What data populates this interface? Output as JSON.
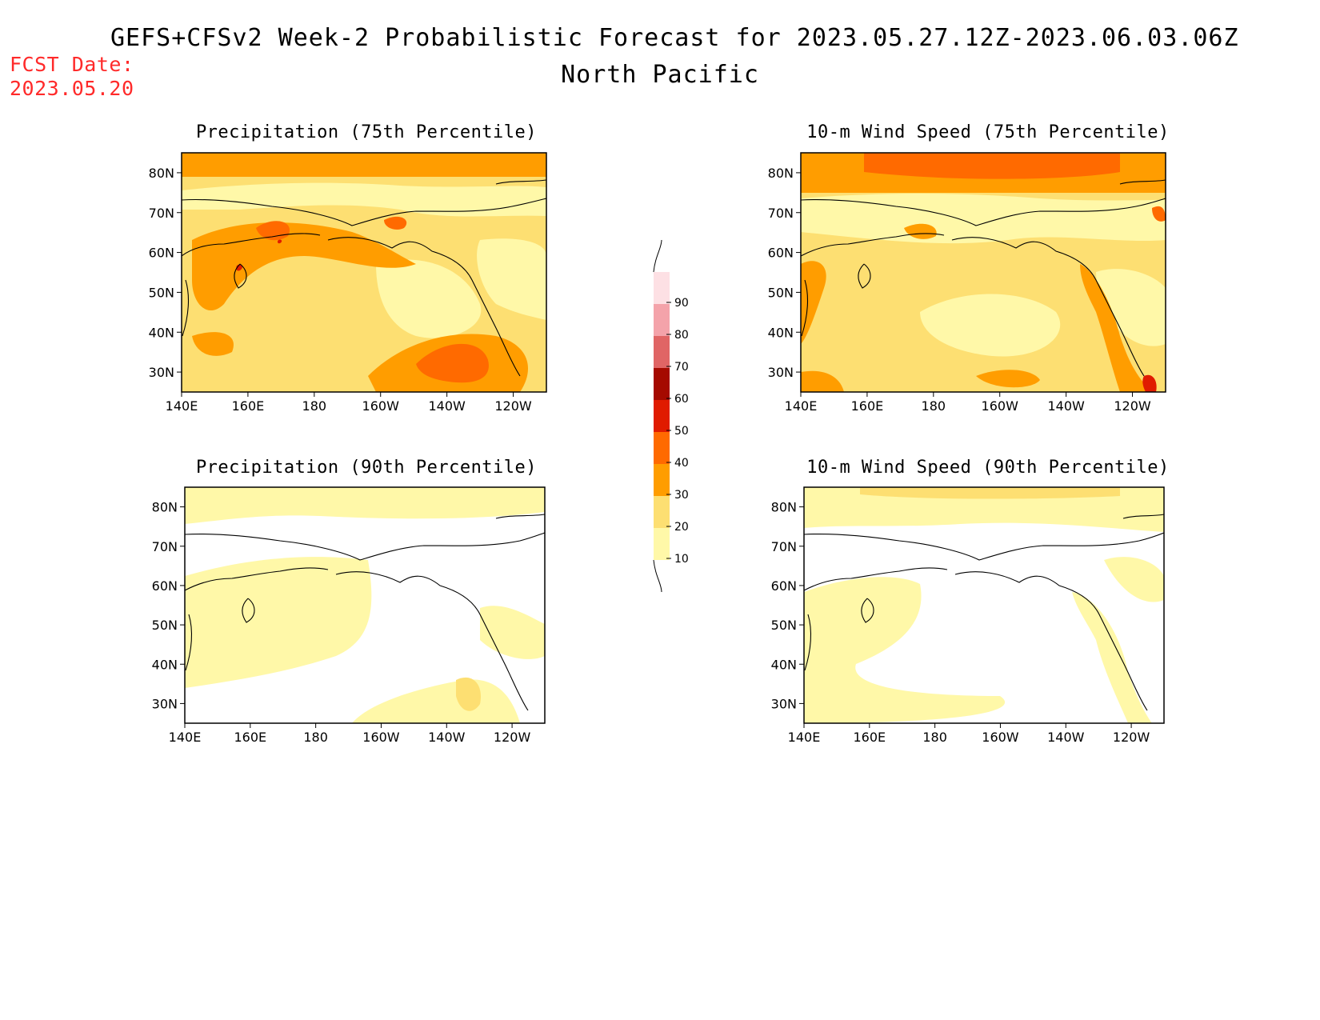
{
  "header": {
    "title": "GEFS+CFSv2 Week-2 Probabilistic Forecast for 2023.05.27.12Z-2023.06.03.06Z",
    "subtitle": "North Pacific",
    "fcst_label": "FCST Date:",
    "fcst_value": "2023.05.20"
  },
  "panels": [
    {
      "title": "Precipitation (75th Percentile)"
    },
    {
      "title": "10-m Wind Speed (75th Percentile)"
    },
    {
      "title": "Precipitation (90th Percentile)"
    },
    {
      "title": "10-m Wind Speed (90th Percentile)"
    }
  ],
  "axes": {
    "lon_labels": [
      "140E",
      "160E",
      "180",
      "160W",
      "140W",
      "120W"
    ],
    "lat_labels": [
      "80N",
      "70N",
      "60N",
      "50N",
      "40N",
      "30N"
    ]
  },
  "colorbar": {
    "labels": [
      "90",
      "80",
      "70",
      "60",
      "50",
      "40",
      "30",
      "20",
      "10"
    ],
    "colors": [
      "#fde0e4",
      "#f4a3aa",
      "#e06565",
      "#a50a00",
      "#e01b00",
      "#ff6a00",
      "#ff9d00",
      "#fddf72",
      "#fff8a8"
    ]
  },
  "fill_colors": {
    "c10": "#fff8a8",
    "c20": "#fddf72",
    "c30": "#ff9d00",
    "c40": "#ff6a00",
    "c50": "#e01b00"
  }
}
